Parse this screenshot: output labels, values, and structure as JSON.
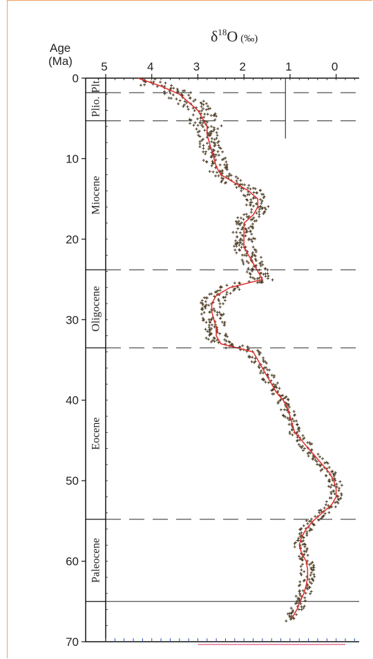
{
  "chart_data": {
    "type": "scatter",
    "title_main": "δ",
    "title_sup": "18",
    "title_rest": "O",
    "title_unit": "(‰)",
    "y_title_line1": "Age",
    "y_title_line2": "(Ma)",
    "xlim": [
      5,
      -0.5
    ],
    "ylim": [
      0,
      70
    ],
    "x_ticks": [
      5,
      4,
      3,
      2,
      1,
      0
    ],
    "y_ticks": [
      0,
      10,
      20,
      30,
      40,
      50,
      60,
      70
    ],
    "epoch_boundaries": [
      1.8,
      5.3,
      23.8,
      33.5,
      54.8,
      65.0
    ],
    "epochs": [
      {
        "name": "Plt.",
        "start": 0,
        "end": 1.8
      },
      {
        "name": "Plio.",
        "start": 1.8,
        "end": 5.3
      },
      {
        "name": "Miocene",
        "start": 5.3,
        "end": 23.8
      },
      {
        "name": "Oligocene",
        "start": 23.8,
        "end": 33.5
      },
      {
        "name": "Eocene",
        "start": 33.5,
        "end": 54.8
      },
      {
        "name": "Paleocene",
        "start": 54.8,
        "end": 65.0
      }
    ],
    "smoothed_curve": {
      "color": "#e03030",
      "points": [
        [
          0,
          4.3
        ],
        [
          1,
          3.8
        ],
        [
          2,
          3.4
        ],
        [
          3,
          3.2
        ],
        [
          4,
          3.0
        ],
        [
          5,
          2.9
        ],
        [
          6,
          2.8
        ],
        [
          7,
          2.8
        ],
        [
          8,
          2.75
        ],
        [
          9,
          2.7
        ],
        [
          10,
          2.65
        ],
        [
          11,
          2.6
        ],
        [
          12,
          2.5
        ],
        [
          13,
          2.2
        ],
        [
          14,
          1.9
        ],
        [
          15,
          1.7
        ],
        [
          16,
          1.7
        ],
        [
          17,
          1.8
        ],
        [
          18,
          2.0
        ],
        [
          19,
          2.0
        ],
        [
          20,
          2.0
        ],
        [
          21,
          2.0
        ],
        [
          22,
          1.9
        ],
        [
          23,
          1.8
        ],
        [
          24,
          1.7
        ],
        [
          25,
          1.6
        ],
        [
          26,
          2.3
        ],
        [
          27,
          2.6
        ],
        [
          28,
          2.7
        ],
        [
          29,
          2.7
        ],
        [
          30,
          2.65
        ],
        [
          31,
          2.6
        ],
        [
          32,
          2.6
        ],
        [
          33,
          2.5
        ],
        [
          34,
          1.8
        ],
        [
          35,
          1.7
        ],
        [
          36,
          1.6
        ],
        [
          37,
          1.5
        ],
        [
          38,
          1.4
        ],
        [
          39,
          1.3
        ],
        [
          40,
          1.15
        ],
        [
          41,
          1.05
        ],
        [
          42,
          1.0
        ],
        [
          43,
          0.95
        ],
        [
          44,
          0.9
        ],
        [
          45,
          0.75
        ],
        [
          46,
          0.6
        ],
        [
          47,
          0.45
        ],
        [
          48,
          0.3
        ],
        [
          49,
          0.15
        ],
        [
          50,
          0.05
        ],
        [
          51,
          0.0
        ],
        [
          52,
          0.0
        ],
        [
          53,
          0.1
        ],
        [
          54,
          0.3
        ],
        [
          55,
          0.5
        ],
        [
          56,
          0.65
        ],
        [
          57,
          0.75
        ],
        [
          58,
          0.8
        ],
        [
          59,
          0.75
        ],
        [
          60,
          0.65
        ],
        [
          61,
          0.62
        ],
        [
          62,
          0.62
        ],
        [
          63,
          0.65
        ],
        [
          64,
          0.7
        ],
        [
          65,
          0.78
        ],
        [
          66,
          0.85
        ],
        [
          67,
          0.95
        ]
      ]
    },
    "scatter_color": "#4a3b22"
  }
}
